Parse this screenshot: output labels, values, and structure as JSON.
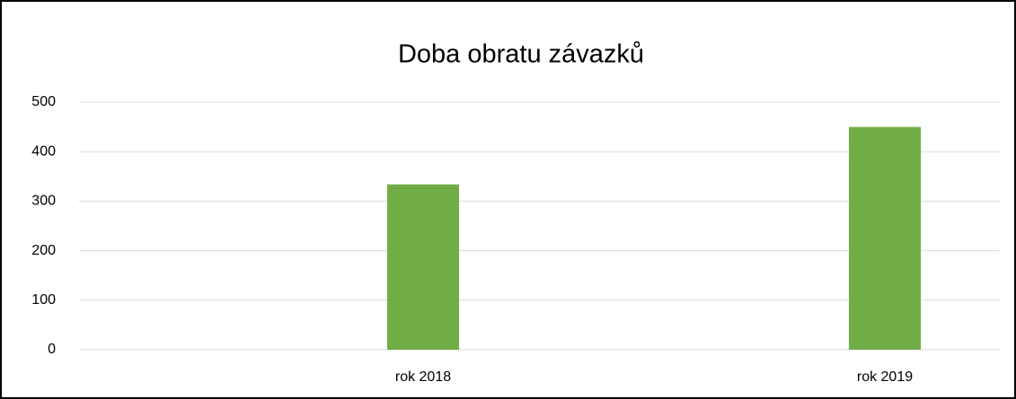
{
  "chart_data": {
    "type": "bar",
    "title": "Doba obratu závazků",
    "categories": [
      "rok 2018",
      "rok 2019"
    ],
    "values": [
      334,
      450
    ],
    "color": "#70ad47",
    "ylim": [
      0,
      500
    ],
    "yticks": [
      0,
      100,
      200,
      300,
      400,
      500
    ],
    "grid": true
  }
}
